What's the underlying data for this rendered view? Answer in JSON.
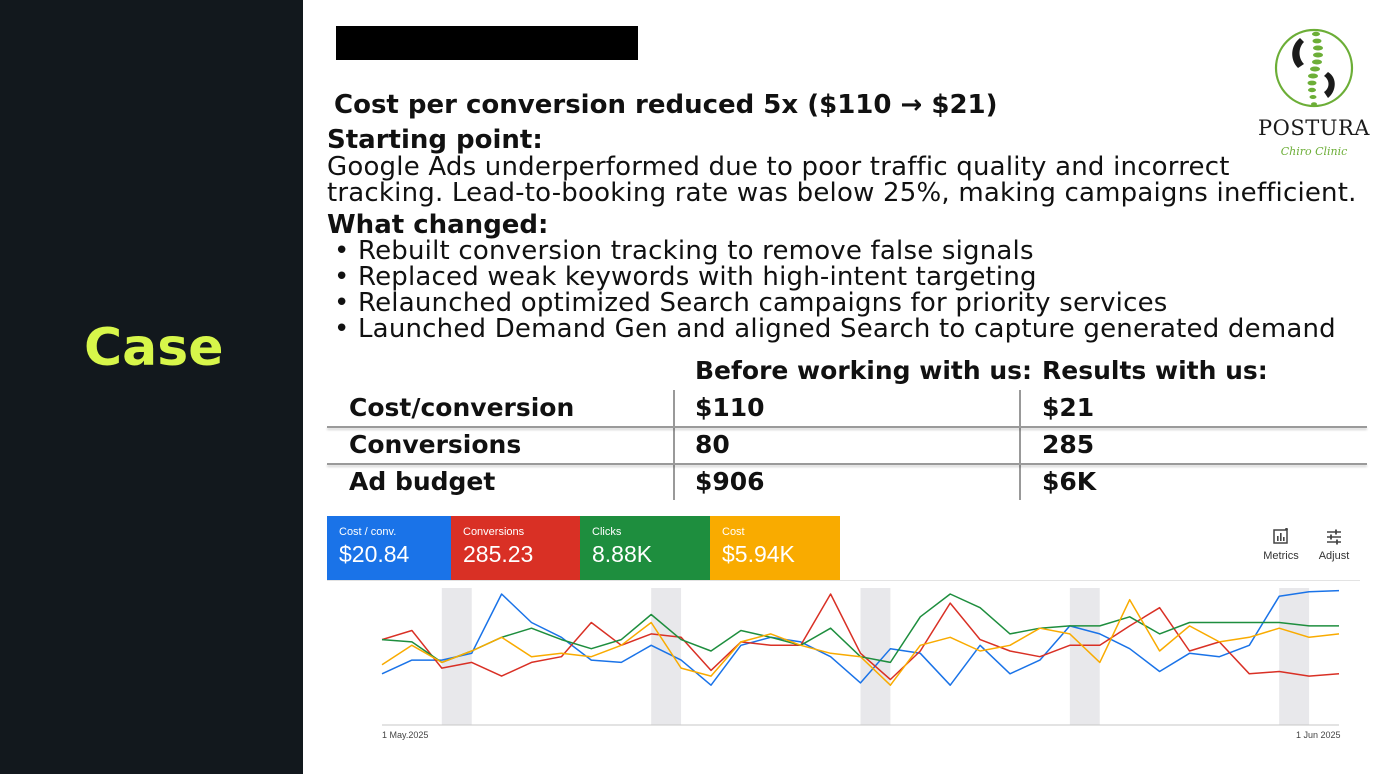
{
  "sidebar": {
    "title": "Case"
  },
  "brand": {
    "name": "POSTURA",
    "subtitle": "Chiro Clinic",
    "accent_color": "#6cae37"
  },
  "slide": {
    "headline": "Cost per conversion reduced 5x ($110 → $21)",
    "starting_point": {
      "heading": "Starting point:",
      "lines": [
        " Google Ads underperformed due to poor traffic quality and incorrect",
        "tracking. Lead-to-booking rate was below 25%, making campaigns inefficient."
      ]
    },
    "what_changed": {
      "heading": "What changed:",
      "bullets": [
        "• Rebuilt conversion tracking to remove false signals",
        "• Replaced weak keywords with high-intent targeting",
        "• Relaunched optimized Search campaigns for priority services",
        "• Launched Demand Gen and aligned Search to capture generated demand"
      ]
    }
  },
  "results_table": {
    "columns": [
      "Before working with us:",
      "Results with us:"
    ],
    "rows": [
      {
        "label": "Cost/conversion",
        "before": "$110",
        "after": "$21"
      },
      {
        "label": "Conversions",
        "before": "80",
        "after": "285"
      },
      {
        "label": "Ad budget",
        "before": "$906",
        "after": "$6K"
      }
    ]
  },
  "ads_dashboard": {
    "metrics": [
      {
        "label": "Cost / conv.",
        "value": "$20.84",
        "color": "#1a73e8"
      },
      {
        "label": "Conversions",
        "value": "285.23",
        "color": "#d93025"
      },
      {
        "label": "Clicks",
        "value": "8.88K",
        "color": "#1e8e3e"
      },
      {
        "label": "Cost",
        "value": "$5.94K",
        "color": "#f9ab00"
      }
    ],
    "tools": [
      {
        "label": "Metrics",
        "icon": "bar-chart-icon"
      },
      {
        "label": "Adjust",
        "icon": "sliders-icon"
      }
    ]
  },
  "chart_data": {
    "type": "line",
    "x_start_label": "1 May.2025",
    "x_end_label": "1 Jun 2025",
    "weekend_shading": true,
    "series": [
      {
        "name": "Cost / conv.",
        "color": "#1a73e8",
        "values": [
          0.3,
          0.42,
          0.42,
          0.48,
          1.0,
          0.75,
          0.62,
          0.42,
          0.4,
          0.55,
          0.42,
          0.2,
          0.55,
          0.62,
          0.58,
          0.45,
          0.22,
          0.52,
          0.48,
          0.2,
          0.55,
          0.3,
          0.42,
          0.72,
          0.65,
          0.52,
          0.32,
          0.48,
          0.45,
          0.55,
          0.98,
          1.02,
          1.03
        ]
      },
      {
        "name": "Conversions",
        "color": "#d93025",
        "values": [
          0.6,
          0.68,
          0.35,
          0.4,
          0.28,
          0.4,
          0.45,
          0.75,
          0.55,
          0.65,
          0.62,
          0.33,
          0.58,
          0.55,
          0.55,
          1.0,
          0.48,
          0.25,
          0.5,
          0.92,
          0.6,
          0.5,
          0.45,
          0.55,
          0.55,
          0.72,
          0.88,
          0.5,
          0.58,
          0.3,
          0.32,
          0.28,
          0.3
        ]
      },
      {
        "name": "Clicks",
        "color": "#1e8e3e",
        "values": [
          0.6,
          0.58,
          0.4,
          0.5,
          0.62,
          0.7,
          0.6,
          0.52,
          0.6,
          0.82,
          0.6,
          0.5,
          0.68,
          0.62,
          0.55,
          0.7,
          0.45,
          0.4,
          0.8,
          1.0,
          0.88,
          0.65,
          0.7,
          0.72,
          0.72,
          0.8,
          0.65,
          0.75,
          0.75,
          0.75,
          0.75,
          0.72,
          0.72
        ]
      },
      {
        "name": "Cost",
        "color": "#f9ab00",
        "values": [
          0.38,
          0.55,
          0.4,
          0.5,
          0.62,
          0.45,
          0.48,
          0.45,
          0.55,
          0.75,
          0.35,
          0.28,
          0.58,
          0.65,
          0.55,
          0.48,
          0.45,
          0.2,
          0.55,
          0.62,
          0.5,
          0.55,
          0.7,
          0.65,
          0.4,
          0.95,
          0.5,
          0.72,
          0.58,
          0.62,
          0.7,
          0.62,
          0.65
        ]
      }
    ]
  }
}
